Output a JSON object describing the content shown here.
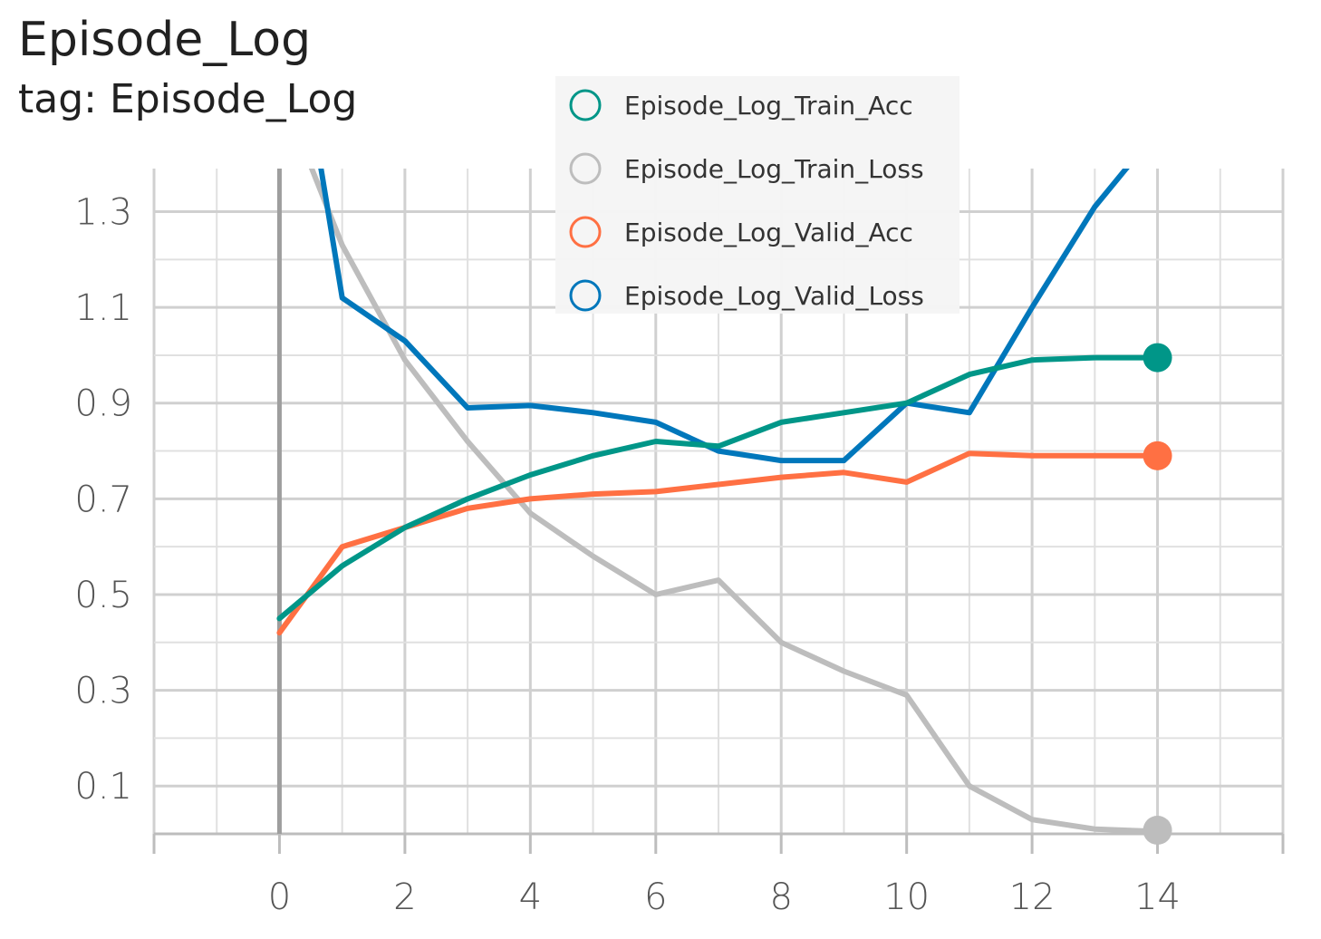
{
  "title": "Episode_Log",
  "subtitle": "tag: Episode_Log",
  "chart_data": {
    "type": "line",
    "title": "Episode_Log",
    "subtitle": "tag: Episode_Log",
    "xlabel": "",
    "ylabel": "",
    "xlim": [
      -2,
      16
    ],
    "ylim": [
      0.0,
      1.39
    ],
    "x_ticks": [
      0,
      2,
      4,
      6,
      8,
      10,
      12,
      14
    ],
    "y_ticks": [
      0.1,
      0.3,
      0.5,
      0.7,
      0.9,
      1.1,
      1.3
    ],
    "grid": true,
    "legend": "top-center",
    "series": [
      {
        "name": "Episode_Log_Train_Acc",
        "color": "#009688",
        "x": [
          0,
          1,
          2,
          3,
          4,
          5,
          6,
          7,
          8,
          9,
          10,
          11,
          12,
          13,
          14
        ],
        "y": [
          0.45,
          0.56,
          0.64,
          0.7,
          0.75,
          0.79,
          0.82,
          0.81,
          0.86,
          0.88,
          0.9,
          0.96,
          0.99,
          0.995,
          0.995
        ]
      },
      {
        "name": "Episode_Log_Train_Loss",
        "color": "#bdbdbd",
        "x": [
          0,
          1,
          2,
          3,
          4,
          5,
          6,
          7,
          8,
          9,
          10,
          11,
          12,
          13,
          14
        ],
        "y": [
          1.56,
          1.23,
          0.99,
          0.82,
          0.67,
          0.58,
          0.5,
          0.53,
          0.4,
          0.34,
          0.29,
          0.1,
          0.03,
          0.01,
          0.005
        ]
      },
      {
        "name": "Episode_Log_Valid_Acc",
        "color": "#ff7043",
        "x": [
          0,
          1,
          2,
          3,
          4,
          5,
          6,
          7,
          8,
          9,
          10,
          11,
          12,
          13,
          14
        ],
        "y": [
          0.42,
          0.6,
          0.64,
          0.68,
          0.7,
          0.71,
          0.715,
          0.73,
          0.745,
          0.755,
          0.735,
          0.795,
          0.79,
          0.79,
          0.79
        ]
      },
      {
        "name": "Episode_Log_Valid_Loss",
        "color": "#0077bb",
        "x": [
          0,
          1,
          2,
          3,
          4,
          5,
          6,
          7,
          8,
          9,
          10,
          11,
          12,
          13,
          14
        ],
        "y": [
          1.92,
          1.12,
          1.03,
          0.89,
          0.895,
          0.88,
          0.86,
          0.8,
          0.78,
          0.78,
          0.9,
          0.88,
          1.1,
          1.31,
          1.47
        ]
      }
    ]
  }
}
